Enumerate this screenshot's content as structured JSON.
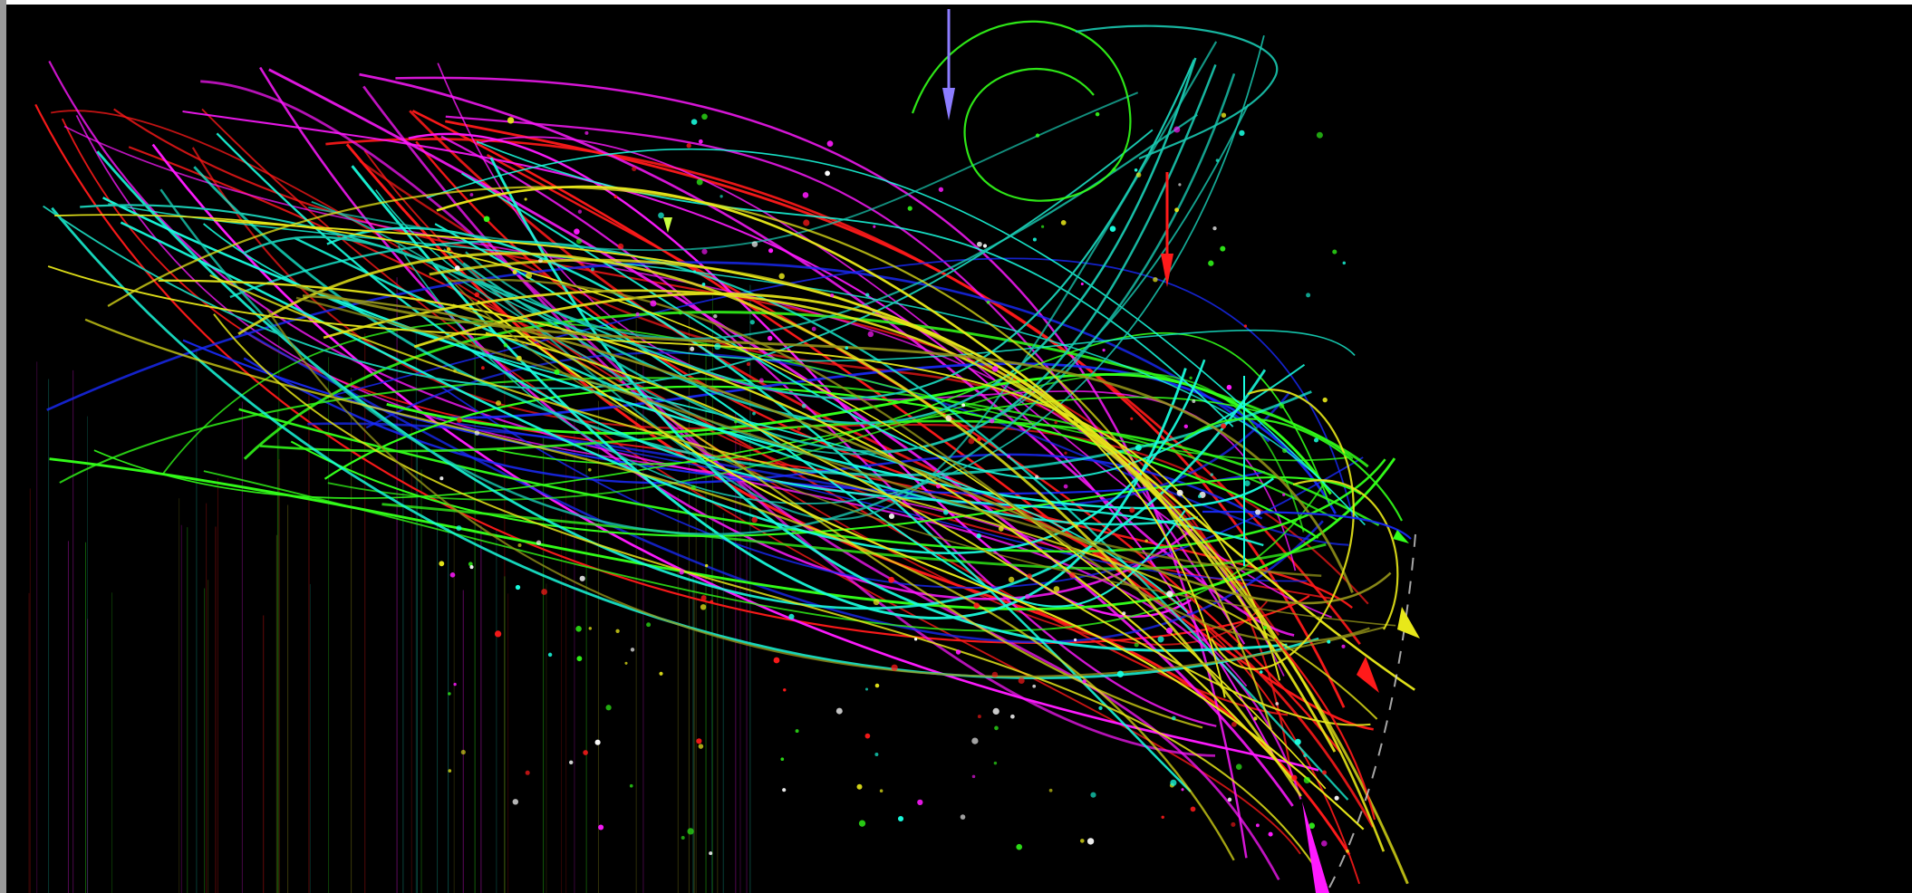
{
  "image": {
    "description_tag": "abstract-flow-visualization",
    "background": "#000000",
    "frame": "#ffffff",
    "palette": {
      "red": "#ff1a1a",
      "magenta": "#ff1aff",
      "blue": "#1a2bff",
      "green": "#33ff1a",
      "cyan": "#1affe0",
      "teal": "#19c8b0",
      "yellow": "#e8e81a",
      "olive": "#9a9a1a",
      "lavender": "#8c7cff",
      "lime_marker": "#c8ff40",
      "white_dash": "#cfcfcf"
    }
  }
}
